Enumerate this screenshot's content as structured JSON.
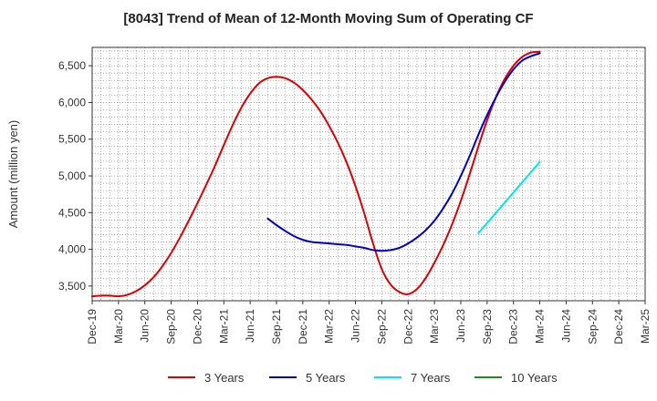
{
  "chart_data": {
    "type": "line",
    "title": "[8043]  Trend of Mean of 12-Month Moving Sum of Operating CF",
    "xlabel": "",
    "ylabel": "Amount (million yen)",
    "ylim": [
      3300,
      6750
    ],
    "yticks": [
      3500,
      4000,
      4500,
      5000,
      5500,
      6000,
      6500
    ],
    "ytick_labels": [
      "3,500",
      "4,000",
      "4,500",
      "5,000",
      "5,500",
      "6,000",
      "6,500"
    ],
    "xlim": [
      0,
      63
    ],
    "xticks": [
      0,
      3,
      6,
      9,
      12,
      15,
      18,
      21,
      24,
      27,
      30,
      33,
      36,
      39,
      42,
      45,
      48,
      51,
      54,
      57,
      60,
      63
    ],
    "xtick_labels": [
      "Dec-19",
      "Mar-20",
      "Jun-20",
      "Sep-20",
      "Dec-20",
      "Mar-21",
      "Jun-21",
      "Sep-21",
      "Dec-21",
      "Mar-22",
      "Jun-22",
      "Sep-22",
      "Dec-22",
      "Mar-23",
      "Jun-23",
      "Sep-23",
      "Dec-23",
      "Mar-24",
      "Jun-24",
      "Sep-24",
      "Dec-24",
      "Mar-25"
    ],
    "grid": true,
    "legend_position": "bottom",
    "series": [
      {
        "name": "3 Years",
        "color": "#dd0000",
        "x": [
          0,
          1,
          2,
          3,
          4,
          5,
          6,
          7,
          8,
          9,
          10,
          11,
          12,
          13,
          14,
          15,
          16,
          17,
          18,
          19,
          20,
          21,
          22,
          23,
          24,
          25,
          26,
          27,
          28,
          29,
          30,
          31,
          32,
          33,
          34,
          35,
          36,
          37,
          38,
          39,
          40,
          41,
          42,
          43,
          44,
          45,
          46,
          47,
          48,
          49,
          50,
          51
        ],
        "values": [
          3360,
          3370,
          3370,
          3360,
          3380,
          3430,
          3510,
          3620,
          3770,
          3950,
          4160,
          4390,
          4630,
          4880,
          5140,
          5420,
          5690,
          5930,
          6120,
          6260,
          6330,
          6350,
          6330,
          6270,
          6170,
          6040,
          5880,
          5680,
          5450,
          5180,
          4860,
          4490,
          4080,
          3730,
          3520,
          3420,
          3390,
          3460,
          3610,
          3820,
          4060,
          4340,
          4660,
          5020,
          5400,
          5760,
          6070,
          6320,
          6500,
          6620,
          6680,
          6690
        ]
      },
      {
        "name": "5 Years",
        "color": "#0000cc",
        "x": [
          20,
          21,
          22,
          23,
          24,
          25,
          26,
          27,
          28,
          29,
          30,
          31,
          32,
          33,
          34,
          35,
          36,
          37,
          38,
          39,
          40,
          41,
          42,
          43,
          44,
          45,
          46,
          47,
          48,
          49,
          50,
          51
        ],
        "values": [
          4420,
          4330,
          4250,
          4180,
          4130,
          4100,
          4090,
          4080,
          4070,
          4060,
          4040,
          4020,
          3990,
          3980,
          3990,
          4020,
          4080,
          4160,
          4260,
          4390,
          4560,
          4760,
          5000,
          5270,
          5560,
          5830,
          6070,
          6280,
          6450,
          6570,
          6630,
          6670
        ]
      },
      {
        "name": "7 Years",
        "color": "#00e5ee",
        "x": [
          44,
          51
        ],
        "values": [
          4220,
          5190
        ]
      },
      {
        "name": "10 Years",
        "color": "#228b22",
        "x": [],
        "values": []
      }
    ]
  }
}
